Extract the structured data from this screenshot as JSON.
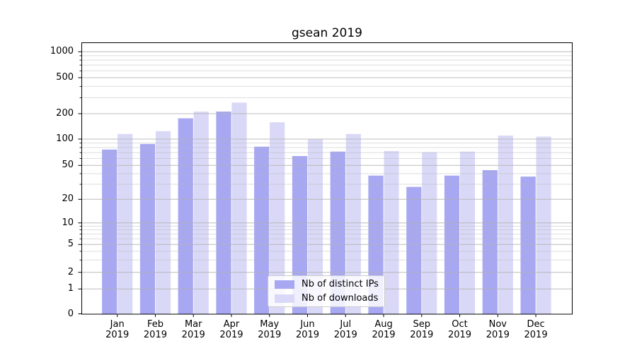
{
  "title": "gsean 2019",
  "legend": {
    "items": [
      {
        "label": "Nb of distinct IPs",
        "color": "#a8a8f2"
      },
      {
        "label": "Nb of downloads",
        "color": "#d9d9f7"
      }
    ]
  },
  "y_axis": {
    "major_ticks": [
      0,
      1,
      2,
      5,
      10,
      20,
      50,
      100,
      200,
      500,
      1000
    ],
    "minor_ticks": [
      3,
      4,
      6,
      7,
      8,
      9,
      30,
      40,
      60,
      70,
      80,
      90,
      300,
      400,
      600,
      700,
      800,
      900
    ]
  },
  "x_axis": {
    "months": [
      "Jan",
      "Feb",
      "Mar",
      "Apr",
      "May",
      "Jun",
      "Jul",
      "Aug",
      "Sep",
      "Oct",
      "Nov",
      "Dec"
    ],
    "year": "2019"
  },
  "chart_data": {
    "type": "bar",
    "title": "gsean 2019",
    "categories": [
      "Jan 2019",
      "Feb 2019",
      "Mar 2019",
      "Apr 2019",
      "May 2019",
      "Jun 2019",
      "Jul 2019",
      "Aug 2019",
      "Sep 2019",
      "Oct 2019",
      "Nov 2019",
      "Dec 2019"
    ],
    "series": [
      {
        "name": "Nb of distinct IPs",
        "color": "#a8a8f2",
        "values": [
          76,
          88,
          176,
          211,
          82,
          64,
          72,
          38,
          28,
          38,
          44,
          37
        ]
      },
      {
        "name": "Nb of downloads",
        "color": "#d9d9f7",
        "values": [
          115,
          124,
          211,
          265,
          158,
          100,
          115,
          73,
          71,
          72,
          110,
          107
        ]
      }
    ],
    "xlabel": "",
    "ylabel": "",
    "y_scale": "symlog",
    "y_tick_values": [
      0,
      1,
      2,
      5,
      10,
      20,
      50,
      100,
      200,
      500,
      1000
    ],
    "ylim": [
      0,
      1300
    ],
    "grid": "both, light gray, drawn over bars",
    "legend_position": "lower center (inside axes)"
  }
}
